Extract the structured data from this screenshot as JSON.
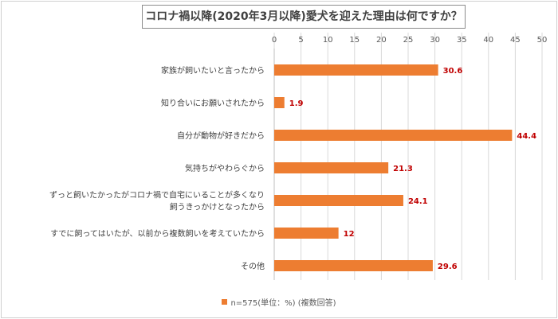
{
  "chart_data": {
    "type": "bar",
    "orientation": "horizontal",
    "title": "コロナ禍以降(2020年3月以降)愛犬を迎えた理由は何ですか？",
    "categories": [
      [
        "家族が飼いたいと言ったから"
      ],
      [
        "知り合いにお願いされたから"
      ],
      [
        "自分が動物が好きだから"
      ],
      [
        "気持ちがやわらぐから"
      ],
      [
        "ずっと飼いたかったがコロナ禍で自宅にいることが多くなり",
        "飼うきっかけとなったから"
      ],
      [
        "すでに飼ってはいたが、以前から複数飼いを考えていたから"
      ],
      [
        "その他"
      ]
    ],
    "values": [
      30.6,
      1.9,
      44.4,
      21.3,
      24.1,
      12,
      29.6
    ],
    "value_labels": [
      "30.6",
      "1.9",
      "44.4",
      "21.3",
      "24.1",
      "12",
      "29.6"
    ],
    "xlim": [
      0,
      50
    ],
    "x_ticks": [
      0,
      5,
      10,
      15,
      20,
      25,
      30,
      35,
      40,
      45,
      50
    ],
    "x_axis_position": "top",
    "grid": true,
    "legend_position": "bottom",
    "legend": "n=575(単位：%) (複数回答)",
    "bar_color": "#ed7d31",
    "label_color": "#c00000"
  }
}
